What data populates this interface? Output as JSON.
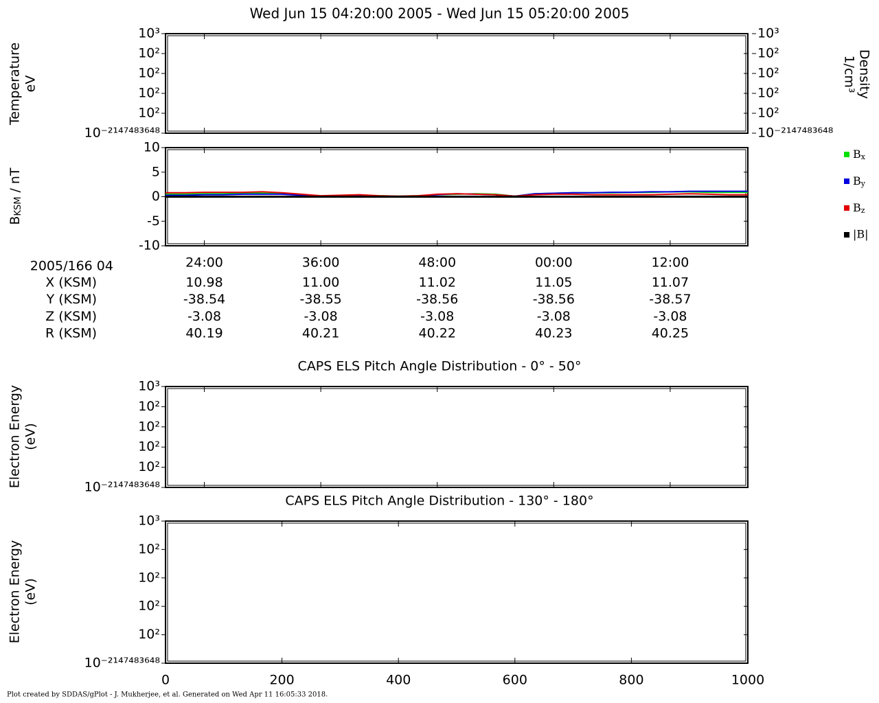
{
  "title": "Wed Jun 15 04:20:00 2005 - Wed Jun 15 05:20:00 2005",
  "chart_data": [
    {
      "type": "line",
      "ylabel": [
        "Temperature",
        "eV"
      ],
      "y2label": [
        "Density",
        "1/cm³"
      ],
      "series": [],
      "xlim": [
        20,
        80
      ],
      "ylim": [
        2,
        3
      ],
      "yticks": [
        {
          "value": 3,
          "label": "10³"
        },
        {
          "value": 2.8,
          "label": "10²"
        },
        {
          "value": 2.6,
          "label": "10²"
        },
        {
          "value": 2.4,
          "label": "10²"
        },
        {
          "value": 2.2,
          "label": "10²"
        },
        {
          "value": 2,
          "label": "10⁻²¹⁴⁷⁴⁸³⁶⁴⁸"
        }
      ],
      "y2lim": [
        2,
        3
      ],
      "y2ticks": [
        {
          "value": 3,
          "label": "10³"
        },
        {
          "value": 2.8,
          "label": "10²"
        },
        {
          "value": 2.6,
          "label": "10²"
        },
        {
          "value": 2.4,
          "label": "10²"
        },
        {
          "value": 2.2,
          "label": "10²"
        },
        {
          "value": 2,
          "label": "10⁻²¹⁴⁷⁴⁸³⁶⁴⁸"
        }
      ]
    },
    {
      "type": "line",
      "ylabel": [
        "B",
        "KSM",
        " / nT"
      ],
      "ylabel_subscript": 1,
      "x": [
        20,
        22,
        24,
        26,
        28,
        30,
        32,
        34,
        36,
        38,
        40,
        42,
        44,
        46,
        48,
        50,
        52,
        54,
        56,
        58,
        60,
        62,
        64,
        66,
        68,
        70,
        72,
        74,
        76,
        78,
        80
      ],
      "series": [
        {
          "name": "Bx",
          "subscript": true,
          "color": "#00e000",
          "values": [
            0.5,
            0.5,
            0.6,
            0.6,
            0.7,
            0.7,
            0.6,
            0.4,
            0.1,
            0.2,
            0.3,
            0.2,
            0.1,
            0.2,
            0.4,
            0.5,
            0.6,
            0.5,
            0.1,
            0.6,
            0.7,
            0.8,
            0.8,
            0.8,
            0.9,
            0.9,
            1.0,
            1.0,
            0.9,
            0.9,
            0.9
          ]
        },
        {
          "name": "By",
          "subscript": true,
          "color": "#0000e0",
          "values": [
            0.3,
            0.3,
            0.4,
            0.4,
            0.5,
            0.5,
            0.5,
            0.3,
            0.1,
            0.1,
            0.2,
            0.1,
            0.0,
            0.1,
            0.4,
            0.6,
            0.5,
            0.4,
            0.1,
            0.6,
            0.7,
            0.8,
            0.8,
            0.9,
            0.9,
            1.0,
            1.0,
            1.1,
            1.1,
            1.1,
            1.1
          ]
        },
        {
          "name": "Bz",
          "subscript": true,
          "color": "#e00000",
          "values": [
            0.8,
            0.8,
            0.9,
            0.9,
            0.9,
            1.0,
            0.8,
            0.5,
            0.2,
            0.3,
            0.4,
            0.2,
            0.1,
            0.2,
            0.5,
            0.6,
            0.5,
            0.4,
            0.1,
            0.4,
            0.5,
            0.5,
            0.4,
            0.4,
            0.4,
            0.4,
            0.5,
            0.6,
            0.5,
            0.4,
            0.4
          ]
        },
        {
          "name": "|B|",
          "subscript": false,
          "color": "#000000",
          "values": [
            0,
            0,
            0,
            0,
            0,
            0,
            0,
            0,
            0,
            0,
            0,
            0,
            0,
            0,
            0,
            0,
            0,
            0,
            0,
            0,
            0,
            0,
            0,
            0,
            0,
            0,
            0,
            0,
            0,
            0,
            0
          ]
        }
      ],
      "xlim": [
        20,
        80
      ],
      "xticks": [
        {
          "value": 24,
          "label": "24:00"
        },
        {
          "value": 36,
          "label": "36:00"
        },
        {
          "value": 48,
          "label": "48:00"
        },
        {
          "value": 60,
          "label": "00:00"
        },
        {
          "value": 72,
          "label": "12:00"
        }
      ],
      "ylim": [
        -10,
        10
      ],
      "yticks": [
        10,
        5,
        0,
        -5,
        -10
      ]
    },
    {
      "type": "line",
      "title": "CAPS ELS Pitch Angle Distribution - 0° - 50°",
      "ylabel": [
        "Electron Energy",
        "(eV)"
      ],
      "series": [],
      "xlim": [
        20,
        80
      ],
      "ylim": [
        2,
        3
      ],
      "yticks": [
        {
          "value": 3,
          "label": "10³"
        },
        {
          "value": 2.8,
          "label": "10²"
        },
        {
          "value": 2.6,
          "label": "10²"
        },
        {
          "value": 2.4,
          "label": "10²"
        },
        {
          "value": 2.2,
          "label": "10²"
        },
        {
          "value": 2,
          "label": "10⁻²¹⁴⁷⁴⁸³⁶⁴⁸"
        }
      ]
    },
    {
      "type": "line",
      "title": "CAPS ELS Pitch Angle Distribution - 130° - 180°",
      "ylabel": [
        "Electron Energy",
        "(eV)"
      ],
      "series": [],
      "xlim": [
        0,
        1000
      ],
      "xticks": [
        0,
        200,
        400,
        600,
        800,
        1000
      ],
      "ylim": [
        2,
        3
      ],
      "yticks": [
        {
          "value": 3,
          "label": "10³"
        },
        {
          "value": 2.8,
          "label": "10²"
        },
        {
          "value": 2.6,
          "label": "10²"
        },
        {
          "value": 2.4,
          "label": "10²"
        },
        {
          "value": 2.2,
          "label": "10²"
        },
        {
          "value": 2,
          "label": "10⁻²¹⁴⁷⁴⁸³⁶⁴⁸"
        }
      ]
    }
  ],
  "ephemeris": {
    "header": "2005/166 04",
    "rows": [
      {
        "label": "X (KSM)",
        "values": [
          "10.98",
          "11.00",
          "11.02",
          "11.05",
          "11.07"
        ]
      },
      {
        "label": "Y (KSM)",
        "values": [
          "-38.54",
          "-38.55",
          "-38.56",
          "-38.56",
          "-38.57"
        ]
      },
      {
        "label": "Z (KSM)",
        "values": [
          "-3.08",
          "-3.08",
          "-3.08",
          "-3.08",
          "-3.08"
        ]
      },
      {
        "label": "R (KSM)",
        "values": [
          "40.19",
          "40.21",
          "40.22",
          "40.23",
          "40.25"
        ]
      }
    ]
  },
  "footer": "Plot created by SDDAS/gPlot - J. Mukherjee, et al.  Generated on Wed Apr 11 16:05:33 2018."
}
